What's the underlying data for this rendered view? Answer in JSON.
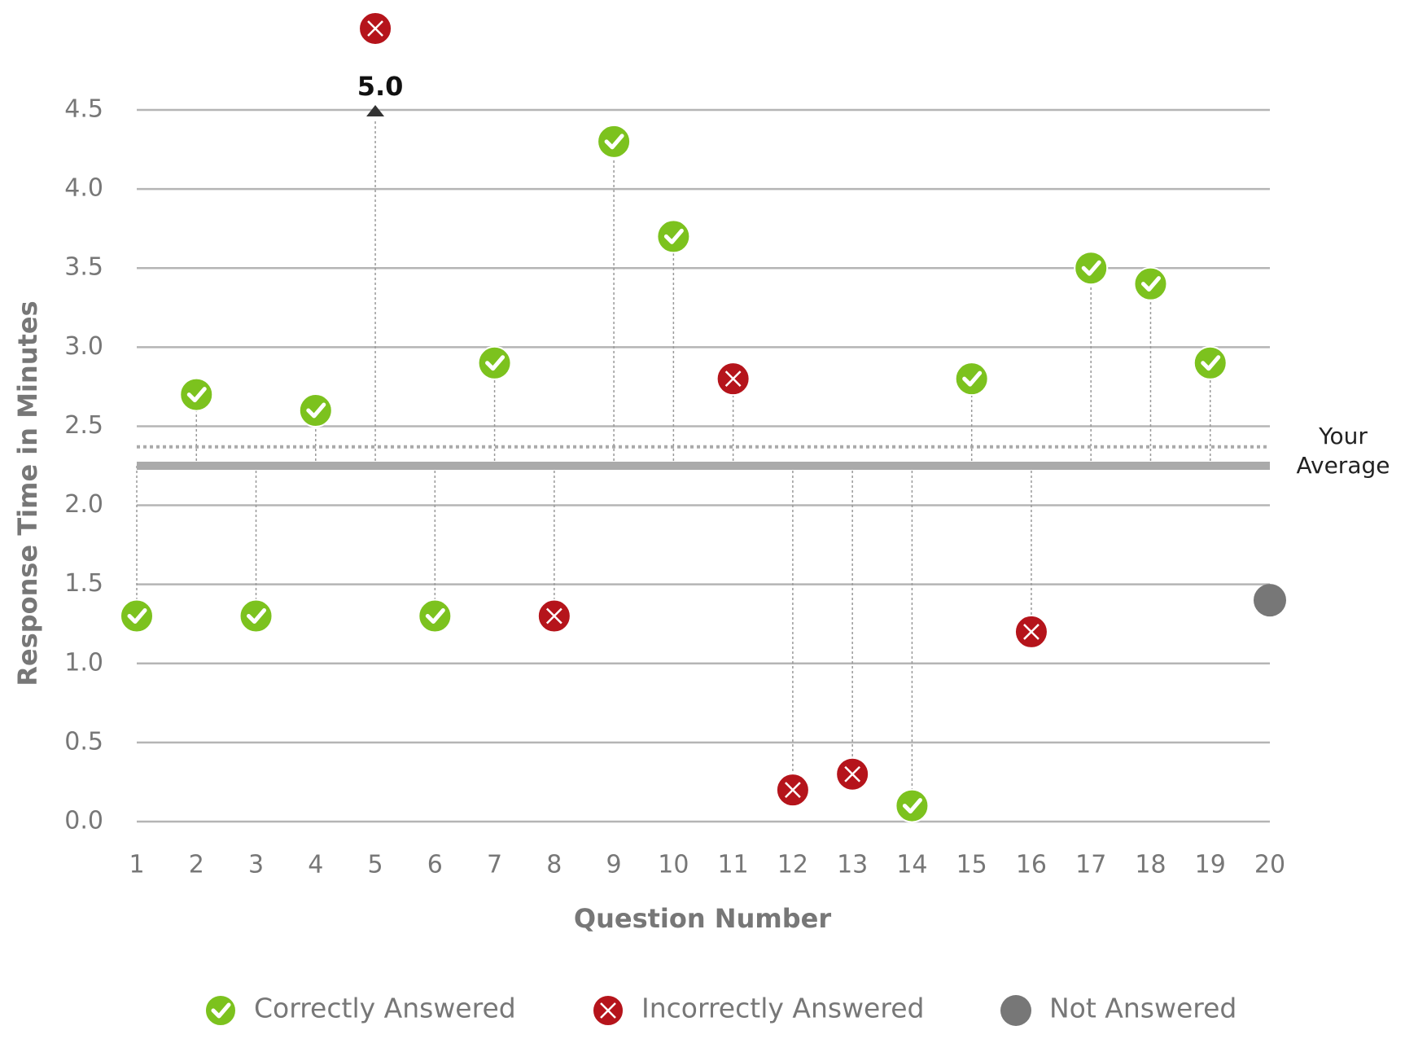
{
  "chart_data": {
    "type": "scatter",
    "x_label": "Question Number",
    "y_label": "Response Time in Minutes",
    "xlim": [
      1,
      20
    ],
    "xticks": [
      1,
      2,
      3,
      4,
      5,
      6,
      7,
      8,
      9,
      10,
      11,
      12,
      13,
      14,
      15,
      16,
      17,
      18,
      19,
      20
    ],
    "ylim": [
      0,
      4.5
    ],
    "yticks": [
      {
        "value": 0,
        "label": "0.0"
      },
      0.5,
      {
        "value": 1,
        "label": "1.0"
      },
      1.5,
      {
        "value": 2,
        "label": "2.0"
      },
      2.5,
      {
        "value": 3,
        "label": "3.0"
      },
      3.5,
      {
        "value": 4,
        "label": "4.0"
      },
      4.5
    ],
    "grid": true,
    "average_line": {
      "label": "Your Average",
      "value": 2.25,
      "color": "#aaaaaa"
    },
    "reference_line": {
      "value": 2.37,
      "color": "#aaaaaa"
    },
    "series": [
      {
        "name": "Correctly Answered",
        "marker": "check",
        "color": "#7cc21e",
        "stems": true,
        "x": [
          1,
          2,
          3,
          4,
          6,
          7,
          9,
          10,
          14,
          15,
          17,
          18,
          19
        ],
        "values": [
          1.3,
          2.7,
          1.3,
          2.6,
          1.3,
          2.9,
          4.3,
          3.7,
          0.1,
          2.8,
          3.5,
          3.4,
          2.9
        ]
      },
      {
        "name": "Incorrectly Answered",
        "marker": "cross",
        "color": "#b5141b",
        "stems": true,
        "x": [
          5,
          8,
          11,
          12,
          13,
          16
        ],
        "values": [
          5.0,
          1.3,
          2.8,
          0.2,
          0.3,
          1.2
        ],
        "value_labels": [
          "5.0",
          null,
          null,
          null,
          null,
          null
        ]
      },
      {
        "name": "Not Answered",
        "marker": "dot",
        "color": "#777777",
        "stems": false,
        "x": [
          20
        ],
        "values": [
          1.4
        ]
      }
    ]
  }
}
